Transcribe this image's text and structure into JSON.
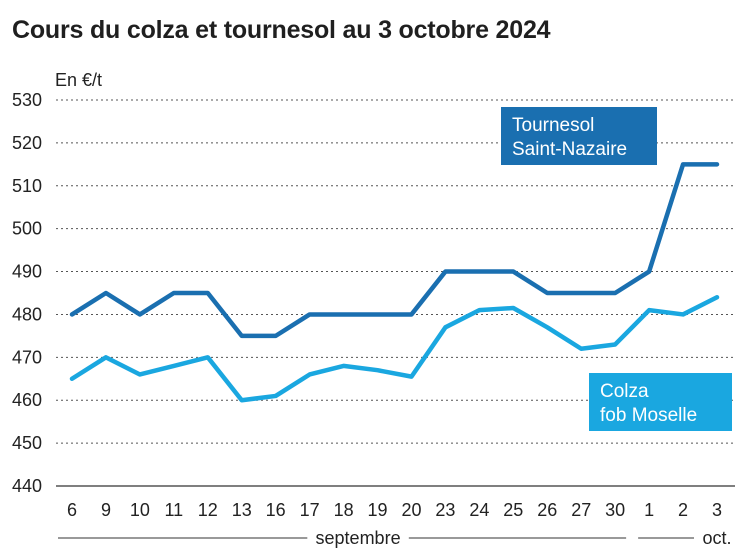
{
  "chart_data": {
    "type": "line",
    "title": "Cours du colza et tournesol au 3 octobre 2024",
    "ylabel": "En €/t",
    "ylim": [
      440,
      530
    ],
    "yticks": [
      440,
      450,
      460,
      470,
      480,
      490,
      500,
      510,
      520,
      530
    ],
    "grid": true,
    "categories": [
      "6",
      "9",
      "10",
      "11",
      "12",
      "13",
      "16",
      "17",
      "18",
      "19",
      "20",
      "23",
      "24",
      "25",
      "26",
      "27",
      "30",
      "1",
      "2",
      "3"
    ],
    "months": [
      {
        "label": "septembre",
        "start": 0,
        "end": 16
      },
      {
        "label": "oct.",
        "start": 17,
        "end": 19
      }
    ],
    "series": [
      {
        "name": "Tournesol Saint-Nazaire",
        "label_lines": [
          "Tournesol",
          "Saint-Nazaire"
        ],
        "color": "#1a6fb0",
        "values": [
          480,
          485,
          480,
          485,
          485,
          475,
          475,
          480,
          480,
          480,
          480,
          490,
          490,
          490,
          485,
          485,
          485,
          490,
          515,
          515
        ]
      },
      {
        "name": "Colza fob Moselle",
        "label_lines": [
          "Colza",
          "fob Moselle"
        ],
        "color": "#1aa7e0",
        "values": [
          465,
          470,
          466,
          468,
          470,
          460,
          461,
          466,
          468,
          467,
          465.5,
          477,
          481,
          481.5,
          477,
          472,
          473,
          481,
          480,
          484
        ]
      }
    ]
  }
}
